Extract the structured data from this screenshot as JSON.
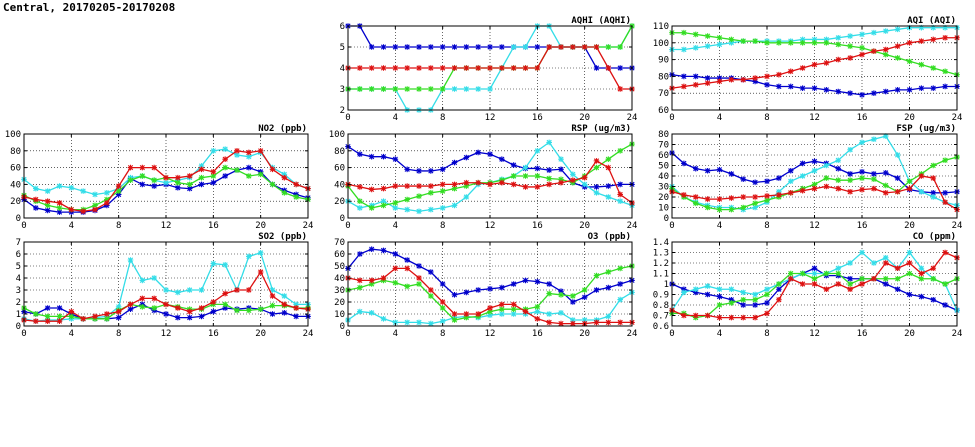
{
  "page_title": "Central, 20170205-20170208",
  "colors": {
    "blue": "#0000cc",
    "cyan": "#33dde8",
    "green": "#33dd22",
    "red": "#dd1111"
  },
  "chart_data": [
    {
      "id": "aqhi",
      "type": "line",
      "title": "AQHI (AQHI)",
      "xlim": [
        0,
        24
      ],
      "xticks": [
        0,
        4,
        8,
        12,
        16,
        20,
        24
      ],
      "ylim": [
        2,
        6
      ],
      "yticks": [
        2,
        3,
        4,
        5,
        6
      ],
      "grid": true,
      "series": [
        {
          "color": "blue",
          "values": [
            6,
            6,
            5,
            5,
            5,
            5,
            5,
            5,
            5,
            5,
            5,
            5,
            5,
            5,
            5,
            5,
            5,
            5,
            5,
            5,
            5,
            4,
            4,
            4,
            4
          ]
        },
        {
          "color": "cyan",
          "values": [
            3,
            3,
            3,
            3,
            3,
            2,
            2,
            2,
            3,
            3,
            3,
            3,
            3,
            4,
            5,
            5,
            6,
            6,
            5,
            5,
            5,
            5,
            5,
            5,
            6
          ]
        },
        {
          "color": "green",
          "values": [
            3,
            3,
            3,
            3,
            3,
            3,
            3,
            3,
            3,
            4,
            4,
            4,
            4,
            4,
            4,
            4,
            4,
            5,
            5,
            5,
            5,
            5,
            5,
            5,
            6
          ]
        },
        {
          "color": "red",
          "values": [
            4,
            4,
            4,
            4,
            4,
            4,
            4,
            4,
            4,
            4,
            4,
            4,
            4,
            4,
            4,
            4,
            4,
            5,
            5,
            5,
            5,
            5,
            4,
            3,
            3
          ]
        }
      ]
    },
    {
      "id": "aqi",
      "type": "line",
      "title": "AQI (AQI)",
      "xlim": [
        0,
        24
      ],
      "xticks": [
        0,
        4,
        8,
        12,
        16,
        20,
        24
      ],
      "ylim": [
        60,
        110
      ],
      "yticks": [
        60,
        70,
        80,
        90,
        100,
        110
      ],
      "grid": true,
      "series": [
        {
          "color": "blue",
          "values": [
            81,
            80,
            80,
            79,
            79,
            79,
            78,
            77,
            75,
            74,
            74,
            73,
            73,
            72,
            71,
            70,
            69,
            70,
            71,
            72,
            72,
            73,
            73,
            74,
            74
          ]
        },
        {
          "color": "cyan",
          "values": [
            96,
            96,
            97,
            98,
            99,
            100,
            101,
            101,
            101,
            101,
            101,
            102,
            102,
            102,
            103,
            104,
            105,
            106,
            107,
            108,
            109,
            109,
            109,
            109,
            109
          ]
        },
        {
          "color": "green",
          "values": [
            106,
            106,
            105,
            104,
            103,
            102,
            101,
            101,
            100,
            100,
            100,
            100,
            100,
            100,
            99,
            98,
            97,
            95,
            93,
            91,
            89,
            87,
            85,
            83,
            81
          ]
        },
        {
          "color": "red",
          "values": [
            73,
            74,
            75,
            76,
            77,
            78,
            78,
            79,
            80,
            81,
            83,
            85,
            87,
            88,
            90,
            91,
            93,
            95,
            96,
            98,
            100,
            101,
            102,
            103,
            103
          ]
        }
      ]
    },
    {
      "id": "no2",
      "type": "line",
      "title": "NO2 (ppb)",
      "xlim": [
        0,
        24
      ],
      "xticks": [
        0,
        4,
        8,
        12,
        16,
        20,
        24
      ],
      "ylim": [
        0,
        100
      ],
      "yticks": [
        0,
        20,
        40,
        60,
        80,
        100
      ],
      "grid": true,
      "series": [
        {
          "color": "blue",
          "values": [
            22,
            12,
            9,
            7,
            7,
            7,
            9,
            15,
            28,
            47,
            40,
            38,
            40,
            36,
            35,
            40,
            42,
            50,
            57,
            60,
            55,
            40,
            33,
            28,
            24
          ]
        },
        {
          "color": "cyan",
          "values": [
            46,
            35,
            32,
            38,
            36,
            32,
            28,
            30,
            35,
            48,
            50,
            45,
            42,
            45,
            48,
            62,
            80,
            82,
            75,
            73,
            78,
            60,
            52,
            40,
            35
          ]
        },
        {
          "color": "green",
          "values": [
            27,
            20,
            15,
            12,
            10,
            10,
            15,
            22,
            32,
            45,
            50,
            45,
            48,
            42,
            40,
            48,
            50,
            60,
            57,
            50,
            52,
            40,
            30,
            25,
            22
          ]
        },
        {
          "color": "red",
          "values": [
            25,
            22,
            20,
            18,
            10,
            8,
            10,
            18,
            38,
            60,
            60,
            60,
            48,
            48,
            50,
            58,
            55,
            70,
            80,
            78,
            80,
            58,
            48,
            40,
            35
          ]
        }
      ]
    },
    {
      "id": "rsp",
      "type": "line",
      "title": "RSP (ug/m3)",
      "xlim": [
        0,
        24
      ],
      "xticks": [
        0,
        4,
        8,
        12,
        16,
        20,
        24
      ],
      "ylim": [
        0,
        100
      ],
      "yticks": [
        0,
        20,
        40,
        60,
        80,
        100
      ],
      "grid": true,
      "series": [
        {
          "color": "blue",
          "values": [
            85,
            76,
            73,
            73,
            70,
            58,
            56,
            56,
            58,
            66,
            72,
            78,
            76,
            70,
            63,
            59,
            59,
            57,
            58,
            42,
            37,
            37,
            38,
            40,
            40
          ]
        },
        {
          "color": "cyan",
          "values": [
            20,
            12,
            15,
            20,
            12,
            10,
            8,
            10,
            12,
            15,
            25,
            40,
            42,
            46,
            50,
            60,
            80,
            90,
            70,
            52,
            40,
            30,
            25,
            20,
            15
          ]
        },
        {
          "color": "green",
          "values": [
            38,
            20,
            12,
            15,
            18,
            22,
            26,
            30,
            32,
            35,
            38,
            42,
            42,
            45,
            50,
            50,
            50,
            47,
            46,
            42,
            50,
            60,
            70,
            80,
            88
          ]
        },
        {
          "color": "red",
          "values": [
            40,
            37,
            34,
            35,
            38,
            38,
            38,
            38,
            40,
            40,
            42,
            42,
            40,
            42,
            40,
            37,
            37,
            40,
            42,
            45,
            48,
            68,
            60,
            28,
            18
          ]
        }
      ]
    },
    {
      "id": "fsp",
      "type": "line",
      "title": "FSP (ug/m3)",
      "xlim": [
        0,
        24
      ],
      "xticks": [
        0,
        4,
        8,
        12,
        16,
        20,
        24
      ],
      "ylim": [
        0,
        80
      ],
      "yticks": [
        0,
        10,
        20,
        30,
        40,
        50,
        60,
        70,
        80
      ],
      "grid": true,
      "series": [
        {
          "color": "blue",
          "values": [
            62,
            52,
            47,
            45,
            46,
            42,
            37,
            34,
            35,
            38,
            45,
            52,
            54,
            52,
            47,
            42,
            44,
            42,
            43,
            38,
            27,
            25,
            24,
            24,
            25
          ]
        },
        {
          "color": "cyan",
          "values": [
            30,
            20,
            15,
            12,
            10,
            10,
            8,
            10,
            15,
            25,
            35,
            40,
            45,
            50,
            55,
            65,
            72,
            75,
            78,
            60,
            35,
            25,
            20,
            15,
            12
          ]
        },
        {
          "color": "green",
          "values": [
            28,
            20,
            14,
            10,
            8,
            8,
            10,
            14,
            17,
            20,
            24,
            28,
            32,
            38,
            36,
            36,
            38,
            37,
            31,
            25,
            35,
            42,
            50,
            55,
            58
          ]
        },
        {
          "color": "red",
          "values": [
            25,
            22,
            20,
            18,
            18,
            19,
            20,
            20,
            21,
            22,
            24,
            26,
            28,
            30,
            28,
            25,
            27,
            28,
            24,
            25,
            28,
            40,
            38,
            15,
            8
          ]
        }
      ]
    },
    {
      "id": "so2",
      "type": "line",
      "title": "SO2 (ppb)",
      "xlim": [
        0,
        24
      ],
      "xticks": [
        0,
        4,
        8,
        12,
        16,
        20,
        24
      ],
      "ylim": [
        0,
        7
      ],
      "yticks": [
        0,
        1,
        2,
        3,
        4,
        5,
        6,
        7
      ],
      "grid": true,
      "series": [
        {
          "color": "blue",
          "values": [
            1.2,
            1.0,
            1.5,
            1.5,
            1.0,
            0.6,
            0.6,
            0.6,
            0.7,
            1.4,
            1.8,
            1.3,
            1.0,
            0.7,
            0.7,
            0.8,
            1.2,
            1.5,
            1.4,
            1.5,
            1.4,
            1.0,
            1.1,
            0.8,
            0.8
          ]
        },
        {
          "color": "cyan",
          "values": [
            0.6,
            0.4,
            0.5,
            0.5,
            0.6,
            0.6,
            0.7,
            0.8,
            1.6,
            5.5,
            3.8,
            4.0,
            3.0,
            2.8,
            3.0,
            3.0,
            5.2,
            5.1,
            3.0,
            5.8,
            6.1,
            3.0,
            2.5,
            1.8,
            1.8
          ]
        },
        {
          "color": "green",
          "values": [
            1.5,
            1.0,
            0.8,
            0.8,
            0.8,
            0.6,
            0.6,
            0.6,
            1.3,
            1.8,
            1.6,
            1.5,
            1.8,
            1.6,
            1.4,
            1.4,
            1.8,
            1.8,
            1.3,
            1.3,
            1.4,
            1.7,
            1.7,
            1.5,
            1.5
          ]
        },
        {
          "color": "red",
          "values": [
            0.5,
            0.4,
            0.4,
            0.4,
            1.2,
            0.6,
            0.8,
            1.0,
            1.2,
            1.8,
            2.3,
            2.3,
            1.8,
            1.5,
            1.2,
            1.5,
            2.0,
            2.7,
            3.0,
            3.0,
            4.5,
            2.5,
            1.8,
            1.5,
            1.4
          ]
        }
      ]
    },
    {
      "id": "o3",
      "type": "line",
      "title": "O3 (ppb)",
      "xlim": [
        0,
        24
      ],
      "xticks": [
        0,
        4,
        8,
        12,
        16,
        20,
        24
      ],
      "ylim": [
        0,
        70
      ],
      "yticks": [
        0,
        10,
        20,
        30,
        40,
        50,
        60,
        70
      ],
      "grid": true,
      "series": [
        {
          "color": "blue",
          "values": [
            48,
            60,
            64,
            63,
            60,
            55,
            50,
            45,
            35,
            26,
            28,
            30,
            31,
            32,
            35,
            38,
            37,
            35,
            29,
            20,
            24,
            30,
            32,
            35,
            38
          ]
        },
        {
          "color": "cyan",
          "values": [
            5,
            12,
            11,
            6,
            3,
            3,
            3,
            2,
            4,
            7,
            8,
            7,
            9,
            10,
            10,
            10,
            12,
            10,
            11,
            5,
            5,
            5,
            8,
            22,
            28
          ]
        },
        {
          "color": "green",
          "values": [
            30,
            32,
            35,
            38,
            36,
            33,
            35,
            25,
            15,
            5,
            7,
            8,
            12,
            14,
            14,
            14,
            16,
            27,
            26,
            25,
            30,
            42,
            45,
            48,
            50
          ]
        },
        {
          "color": "red",
          "values": [
            40,
            38,
            38,
            40,
            48,
            48,
            40,
            30,
            20,
            10,
            10,
            10,
            15,
            18,
            18,
            12,
            6,
            3,
            2,
            2,
            2,
            3,
            3,
            3,
            3
          ]
        }
      ]
    },
    {
      "id": "co",
      "type": "line",
      "title": "CO (ppm)",
      "xlim": [
        0,
        24
      ],
      "xticks": [
        0,
        4,
        8,
        12,
        16,
        20,
        24
      ],
      "ylim": [
        0.6,
        1.4
      ],
      "yticks": [
        0.6,
        0.7,
        0.8,
        0.9,
        1.0,
        1.1,
        1.2,
        1.3,
        1.4
      ],
      "grid": true,
      "series": [
        {
          "color": "blue",
          "values": [
            1.0,
            0.95,
            0.92,
            0.9,
            0.88,
            0.85,
            0.8,
            0.8,
            0.82,
            0.95,
            1.05,
            1.1,
            1.15,
            1.08,
            1.08,
            1.05,
            1.05,
            1.05,
            1.0,
            0.95,
            0.9,
            0.88,
            0.85,
            0.8,
            0.75
          ]
        },
        {
          "color": "cyan",
          "values": [
            0.75,
            0.92,
            0.95,
            0.98,
            0.95,
            0.95,
            0.92,
            0.9,
            0.95,
            1.0,
            1.05,
            1.1,
            1.1,
            1.1,
            1.15,
            1.2,
            1.3,
            1.2,
            1.25,
            1.15,
            1.3,
            1.15,
            1.05,
            1.0,
            0.75
          ]
        },
        {
          "color": "green",
          "values": [
            0.72,
            0.72,
            0.68,
            0.7,
            0.8,
            0.82,
            0.85,
            0.85,
            0.9,
            1.0,
            1.1,
            1.1,
            1.05,
            1.1,
            1.1,
            1.0,
            1.05,
            1.05,
            1.05,
            1.05,
            1.1,
            1.05,
            1.05,
            1.0,
            1.05
          ]
        },
        {
          "color": "red",
          "values": [
            0.75,
            0.7,
            0.7,
            0.7,
            0.68,
            0.68,
            0.68,
            0.68,
            0.72,
            0.85,
            1.05,
            1.0,
            1.0,
            0.95,
            1.0,
            0.95,
            1.0,
            1.05,
            1.2,
            1.15,
            1.2,
            1.1,
            1.15,
            1.3,
            1.25
          ]
        }
      ]
    }
  ]
}
